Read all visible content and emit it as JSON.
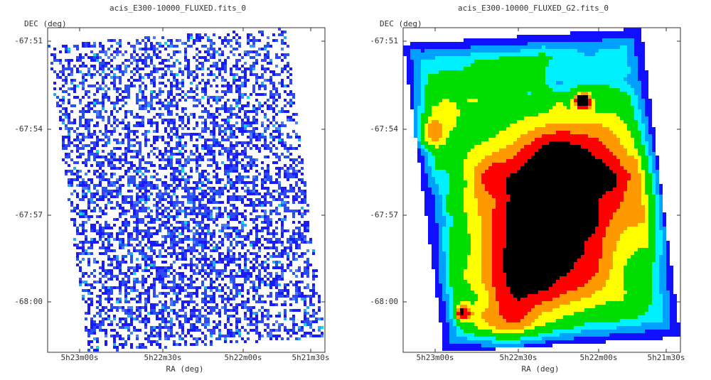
{
  "chart_data": [
    {
      "type": "heatmap",
      "title": "acis_E300-10000_FLUXED.fits_0",
      "xlabel": "RA (deg)",
      "ylabel": "DEC (deg)",
      "x_ticks": [
        "5h23m00s",
        "5h22m30s",
        "5h22m00s",
        "5h21m30s"
      ],
      "y_ticks": [
        "-67:51",
        "-67:54",
        "-67:57",
        "-68:00"
      ],
      "render": "sparse-counts",
      "colors": [
        "#1a1aff",
        "#3344ff",
        "#2255ee",
        "#4a7dff",
        "#22aaff",
        "#00e0e0"
      ]
    },
    {
      "type": "heatmap",
      "title": "acis_E300-10000_FLUXED_G2.fits_0",
      "xlabel": "RA (deg)",
      "ylabel": "DEC (deg)",
      "x_ticks": [
        "5h23m00s",
        "5h22m30s",
        "5h22m00s",
        "5h21m30s"
      ],
      "y_ticks": [
        "-67:51",
        "-67:54",
        "-67:57",
        "-68:00"
      ],
      "render": "smoothed",
      "colors": [
        "#1010ff",
        "#00a0ff",
        "#00f0ff",
        "#00dd00",
        "#ffff00",
        "#ff9900",
        "#ff0000",
        "#000000"
      ]
    }
  ]
}
